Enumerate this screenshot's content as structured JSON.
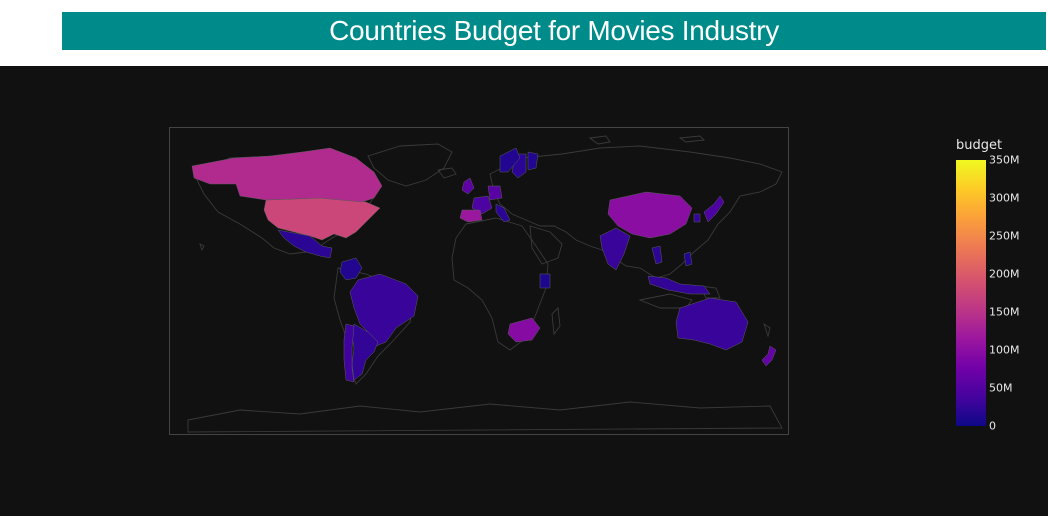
{
  "colors": {
    "banner": "#008b8b",
    "plot_bg": "#111111",
    "land": "#111111",
    "coast": "#3a3a3a",
    "frame": "#444444"
  },
  "chart_data": {
    "type": "choropleth",
    "title": "Countries Budget for Movies Industry",
    "projection": "equirectangular",
    "colorbar": {
      "title": "budget",
      "range": [
        0,
        350000000
      ],
      "colorscale": "Plasma",
      "ticks": [
        {
          "value": 0,
          "label": "0"
        },
        {
          "value": 50000000,
          "label": "50M"
        },
        {
          "value": 100000000,
          "label": "100M"
        },
        {
          "value": 150000000,
          "label": "150M"
        },
        {
          "value": 200000000,
          "label": "200M"
        },
        {
          "value": 250000000,
          "label": "250M"
        },
        {
          "value": 300000000,
          "label": "300M"
        },
        {
          "value": 350000000,
          "label": "350M"
        }
      ]
    },
    "countries": [
      {
        "name": "United States",
        "value": 175000000
      },
      {
        "name": "Canada",
        "value": 140000000
      },
      {
        "name": "Mexico",
        "value": 20000000
      },
      {
        "name": "Brazil",
        "value": 30000000
      },
      {
        "name": "Argentina",
        "value": 25000000
      },
      {
        "name": "Chile",
        "value": 35000000
      },
      {
        "name": "Colombia",
        "value": 15000000
      },
      {
        "name": "Australia",
        "value": 30000000
      },
      {
        "name": "China",
        "value": 100000000
      },
      {
        "name": "India",
        "value": 30000000
      },
      {
        "name": "Japan",
        "value": 45000000
      },
      {
        "name": "South Korea",
        "value": 25000000
      },
      {
        "name": "South Africa",
        "value": 95000000
      },
      {
        "name": "New Zealand",
        "value": 65000000
      },
      {
        "name": "United Kingdom",
        "value": 60000000
      },
      {
        "name": "France",
        "value": 45000000
      },
      {
        "name": "Germany",
        "value": 55000000
      },
      {
        "name": "Spain",
        "value": 115000000
      },
      {
        "name": "Italy",
        "value": 20000000
      },
      {
        "name": "Sweden",
        "value": 20000000
      },
      {
        "name": "Norway",
        "value": 15000000
      },
      {
        "name": "Finland",
        "value": 15000000
      },
      {
        "name": "Kenya",
        "value": 10000000
      },
      {
        "name": "Indonesia",
        "value": 25000000
      },
      {
        "name": "Thailand",
        "value": 20000000
      },
      {
        "name": "Philippines",
        "value": 15000000
      }
    ]
  }
}
